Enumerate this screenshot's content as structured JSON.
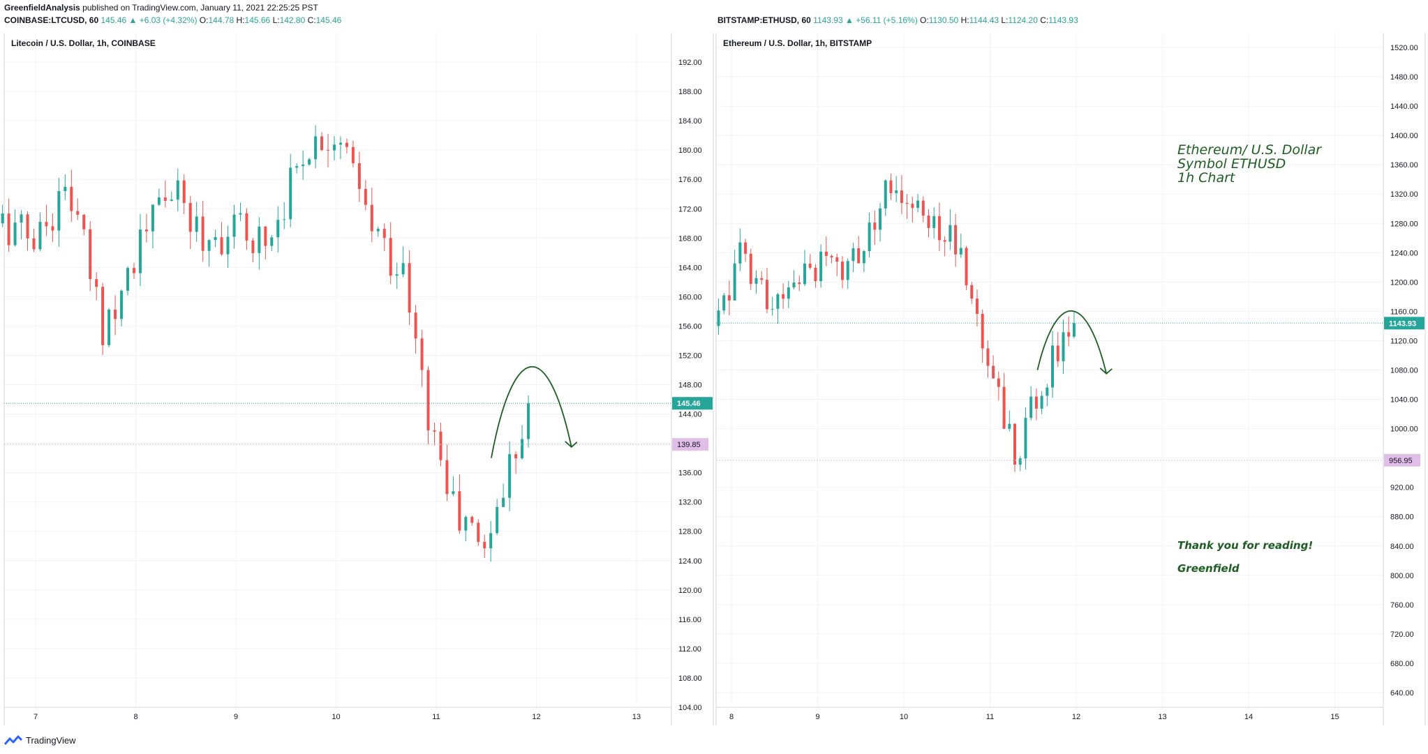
{
  "header": {
    "author": "GreenfieldAnalysis",
    "published": "published on TradingView.com, January 11, 2021 22:25:25 PST"
  },
  "ltc": {
    "symbol_line": {
      "symbol": "COINBASE:LTCUSD, 60",
      "last": "145.46",
      "change": "▲ +6.03 (+4.32%)",
      "o_label": "O:",
      "o": "144.78",
      "h_label": "H:",
      "h": "145.66",
      "l_label": "L:",
      "l": "142.80",
      "c_label": "C:",
      "c": "145.46"
    },
    "pane_title": "Litecoin / U.S. Dollar, 1h, COINBASE"
  },
  "eth": {
    "symbol_line": {
      "symbol": "BITSTAMP:ETHUSD, 60",
      "last": "1143.93",
      "change": "▲ +56.11 (+5.16%)",
      "o_label": "O:",
      "o": "1130.50",
      "h_label": "H:",
      "h": "1144.43",
      "l_label": "L:",
      "l": "1124.20",
      "c_label": "C:",
      "c": "1143.93"
    },
    "pane_title": "Ethereum / U.S. Dollar, 1h, BITSTAMP",
    "notes": {
      "title_l1": "Ethereum/ U.S. Dollar",
      "title_l2": "Symbol ETHUSD",
      "title_l3": "1h Chart",
      "thanks": "Thank you for reading!",
      "sign": "Greenfield"
    }
  },
  "footer": {
    "brand": "TradingView"
  },
  "colors": {
    "up": "#26a69a",
    "down": "#ef5350",
    "drawing": "#1b5e20",
    "level": "#ce93d8"
  },
  "chart_data": [
    {
      "type": "candlestick",
      "title": "Litecoin / U.S. Dollar, 1h, COINBASE",
      "ylim": [
        104,
        196
      ],
      "y_ticks": [
        "104.00",
        "108.00",
        "112.00",
        "116.00",
        "120.00",
        "124.00",
        "128.00",
        "132.00",
        "136.00",
        "140.00",
        "144.00",
        "148.00",
        "152.00",
        "156.00",
        "160.00",
        "164.00",
        "168.00",
        "172.00",
        "176.00",
        "180.00",
        "184.00",
        "188.00",
        "192.00"
      ],
      "x_ticks": [
        "7",
        "8",
        "9",
        "10",
        "11",
        "12",
        "13"
      ],
      "last_price": 145.46,
      "last_price_label": "145.46",
      "level": 139.85,
      "level_label": "139.85",
      "ohlc_keypoints": [
        {
          "day": 6.67,
          "close": 170
        },
        {
          "day": 7.0,
          "close": 168
        },
        {
          "day": 7.33,
          "close": 175
        },
        {
          "day": 7.67,
          "close": 156
        },
        {
          "day": 8.0,
          "close": 166
        },
        {
          "day": 8.33,
          "close": 175
        },
        {
          "day": 8.67,
          "close": 168
        },
        {
          "day": 9.0,
          "close": 169
        },
        {
          "day": 9.33,
          "close": 168
        },
        {
          "day": 9.67,
          "close": 180
        },
        {
          "day": 10.0,
          "close": 183
        },
        {
          "day": 10.33,
          "close": 170
        },
        {
          "day": 10.67,
          "close": 163
        },
        {
          "day": 10.9,
          "close": 145
        },
        {
          "day": 11.2,
          "close": 130
        },
        {
          "day": 11.5,
          "close": 126
        },
        {
          "day": 11.9,
          "close": 145.46
        }
      ],
      "projection": "arc up then down (hand-drawn arrow)"
    },
    {
      "type": "candlestick",
      "title": "Ethereum / U.S. Dollar, 1h, BITSTAMP",
      "ylim": [
        620,
        1540
      ],
      "y_ticks": [
        "640.00",
        "680.00",
        "720.00",
        "760.00",
        "800.00",
        "840.00",
        "880.00",
        "920.00",
        "960.00",
        "1000.00",
        "1040.00",
        "1080.00",
        "1120.00",
        "1160.00",
        "1200.00",
        "1240.00",
        "1280.00",
        "1320.00",
        "1360.00",
        "1400.00",
        "1440.00",
        "1480.00",
        "1520.00"
      ],
      "x_ticks": [
        "8",
        "9",
        "10",
        "11",
        "12",
        "13",
        "14",
        "15"
      ],
      "last_price": 1143.93,
      "last_price_label": "1143.93",
      "level": 956.95,
      "level_label": "956.95",
      "ohlc_keypoints": [
        {
          "day": 7.85,
          "close": 1140
        },
        {
          "day": 8.1,
          "close": 1250
        },
        {
          "day": 8.5,
          "close": 1160
        },
        {
          "day": 8.9,
          "close": 1210
        },
        {
          "day": 9.4,
          "close": 1230
        },
        {
          "day": 9.8,
          "close": 1330
        },
        {
          "day": 10.2,
          "close": 1300
        },
        {
          "day": 10.6,
          "close": 1260
        },
        {
          "day": 10.8,
          "close": 1170
        },
        {
          "day": 11.0,
          "close": 1090
        },
        {
          "day": 11.3,
          "close": 960
        },
        {
          "day": 11.55,
          "close": 1050
        },
        {
          "day": 11.95,
          "close": 1143.93
        }
      ],
      "projection": "arc up then down (hand-drawn arrow)"
    }
  ]
}
